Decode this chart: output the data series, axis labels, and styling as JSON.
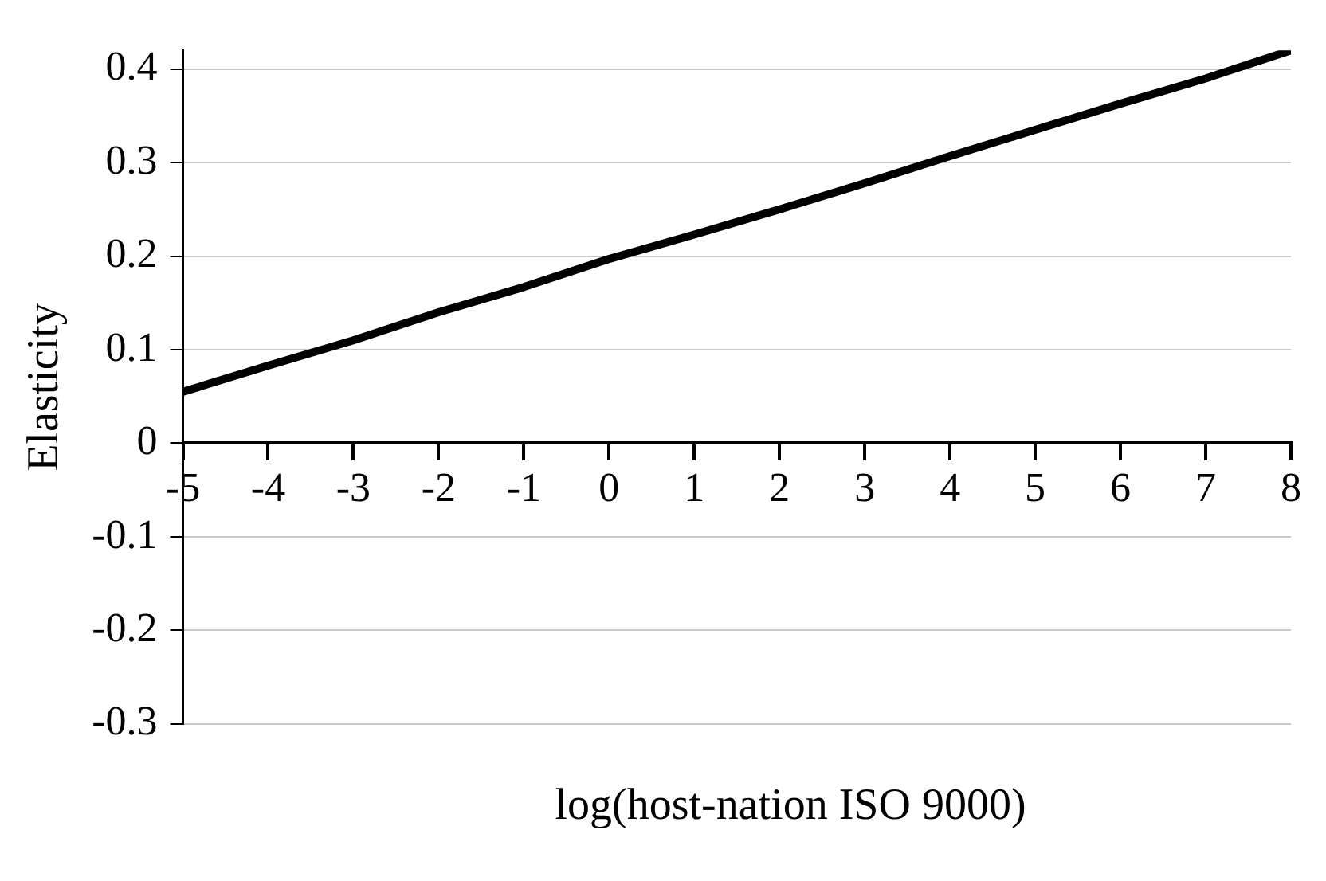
{
  "chart_data": {
    "type": "line",
    "xlabel": "log(host-nation ISO 9000)",
    "ylabel": "Elasticity",
    "x": [
      -5,
      -4,
      -3,
      -2,
      -1,
      0,
      1,
      2,
      3,
      4,
      5,
      6,
      7,
      8
    ],
    "series": [
      {
        "color": "#000000",
        "values": [
          0.055,
          0.083,
          0.11,
          0.14,
          0.167,
          0.197,
          0.223,
          0.25,
          0.278,
          0.307,
          0.335,
          0.363,
          0.39,
          0.42
        ]
      }
    ],
    "xlim": [
      -5,
      8
    ],
    "xticks": [
      -5,
      -4,
      -3,
      -2,
      -1,
      0,
      1,
      2,
      3,
      4,
      5,
      6,
      7,
      8
    ],
    "ylim": [
      -0.3,
      0.42
    ],
    "yticks": [
      -0.3,
      -0.2,
      -0.1,
      0,
      0.1,
      0.2,
      0.3,
      0.4
    ],
    "grid": "y",
    "legend": false,
    "marker": "none",
    "line_style": "solid"
  }
}
